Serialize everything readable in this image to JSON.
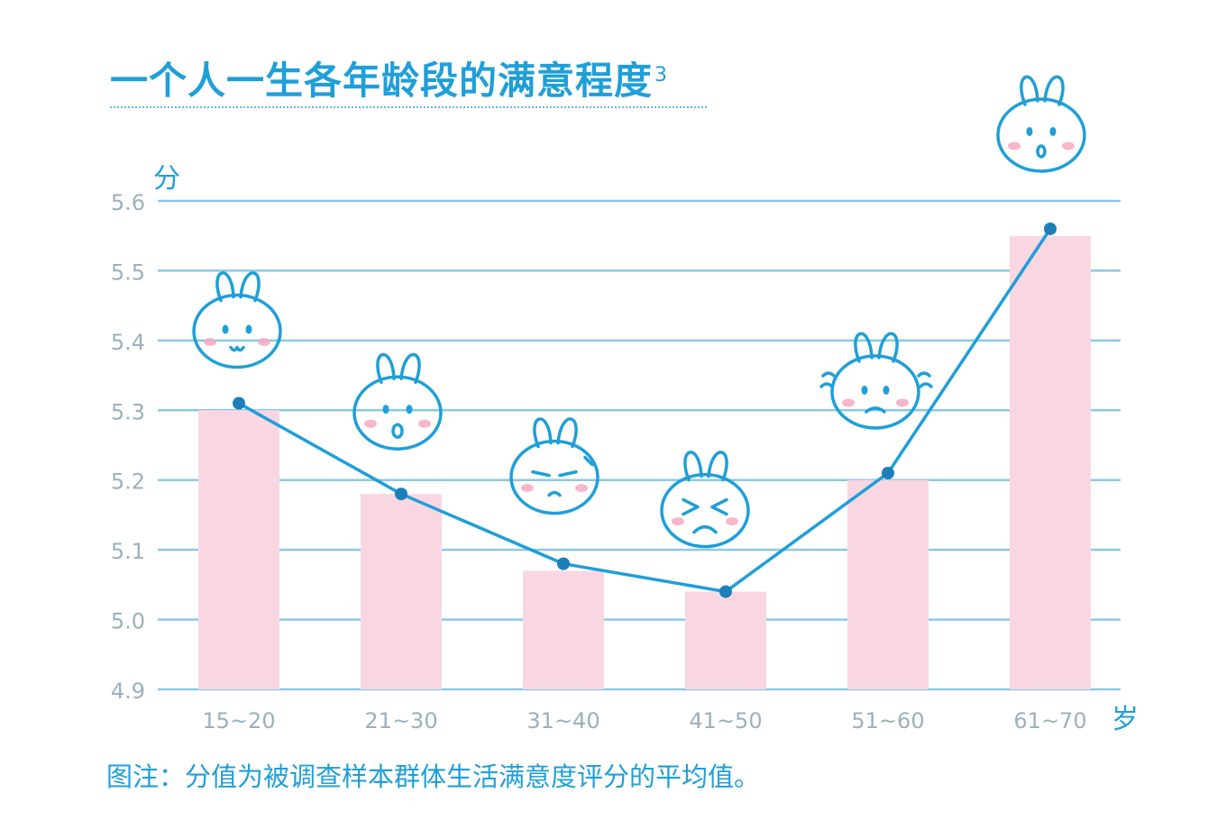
{
  "chart_title": "一个人一生各年龄段的满意程度",
  "footnote_marker": "3",
  "note": "图注：分值为被调查样本群体生活满意度评分的平均值。",
  "colors": {
    "accent": "#1f9fd8",
    "bar": "#f9d7e2",
    "gridline": "#8cc9e6",
    "tick_text": "#9bb0bd"
  },
  "chart_data": {
    "type": "bar",
    "categories": [
      "15~20",
      "21~30",
      "31~40",
      "41~50",
      "51~60",
      "61~70"
    ],
    "values": [
      5.3,
      5.18,
      5.07,
      5.04,
      5.2,
      5.55
    ],
    "line_values": [
      5.31,
      5.18,
      5.08,
      5.04,
      5.21,
      5.56
    ],
    "ylabel": "分",
    "xlabel": "岁",
    "ylim": [
      4.9,
      5.6
    ],
    "yticks": [
      "4.9",
      "5.0",
      "5.1",
      "5.2",
      "5.3",
      "5.4",
      "5.5",
      "5.6"
    ],
    "grid": true,
    "markers": [
      "happy-bunny-icon",
      "surprised-bunny-icon",
      "annoyed-bunny-icon",
      "sad-bunny-icon",
      "worried-bunny-icon",
      "delighted-bunny-icon"
    ]
  }
}
